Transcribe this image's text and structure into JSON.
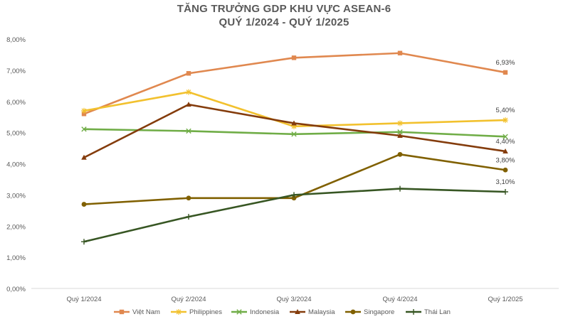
{
  "chart_data": {
    "type": "line",
    "title": [
      "TĂNG TRƯỞNG GDP KHU VỰC ASEAN-6",
      "QUÝ 1/2024 - QUÝ 1/2025"
    ],
    "categories": [
      "Quý 1/2024",
      "Quý 2/2024",
      "Quý 3/2024",
      "Quý 4/2024",
      "Quý 1/2025"
    ],
    "ylim": [
      0,
      8
    ],
    "yticks": [
      "0,00%",
      "1,00%",
      "2,00%",
      "3,00%",
      "4,00%",
      "5,00%",
      "6,00%",
      "7,00%",
      "8,00%"
    ],
    "grid": false,
    "legend_position": "bottom",
    "series": [
      {
        "name": "Việt Nam",
        "color": "#E0884F",
        "marker": "square",
        "values": [
          5.6,
          6.9,
          7.4,
          7.55,
          6.93
        ],
        "last_label": "6,93%"
      },
      {
        "name": "Philippines",
        "color": "#F2C12E",
        "marker": "star",
        "values": [
          5.7,
          6.3,
          5.2,
          5.3,
          5.4
        ],
        "last_label": "5,40%"
      },
      {
        "name": "Indonesia",
        "color": "#70AD47",
        "marker": "x",
        "values": [
          5.11,
          5.05,
          4.95,
          5.02,
          4.87
        ],
        "last_label": ""
      },
      {
        "name": "Malaysia",
        "color": "#843C0C",
        "marker": "triangle",
        "values": [
          4.2,
          5.9,
          5.3,
          4.9,
          4.4
        ],
        "last_label": "4,40%"
      },
      {
        "name": "Singapore",
        "color": "#806000",
        "marker": "circle",
        "values": [
          2.7,
          2.9,
          2.9,
          4.3,
          3.8
        ],
        "last_label": "3,80%"
      },
      {
        "name": "Thái Lan",
        "color": "#375623",
        "marker": "plus",
        "values": [
          1.5,
          2.3,
          3.0,
          3.2,
          3.1
        ],
        "last_label": "3,10%"
      }
    ]
  }
}
